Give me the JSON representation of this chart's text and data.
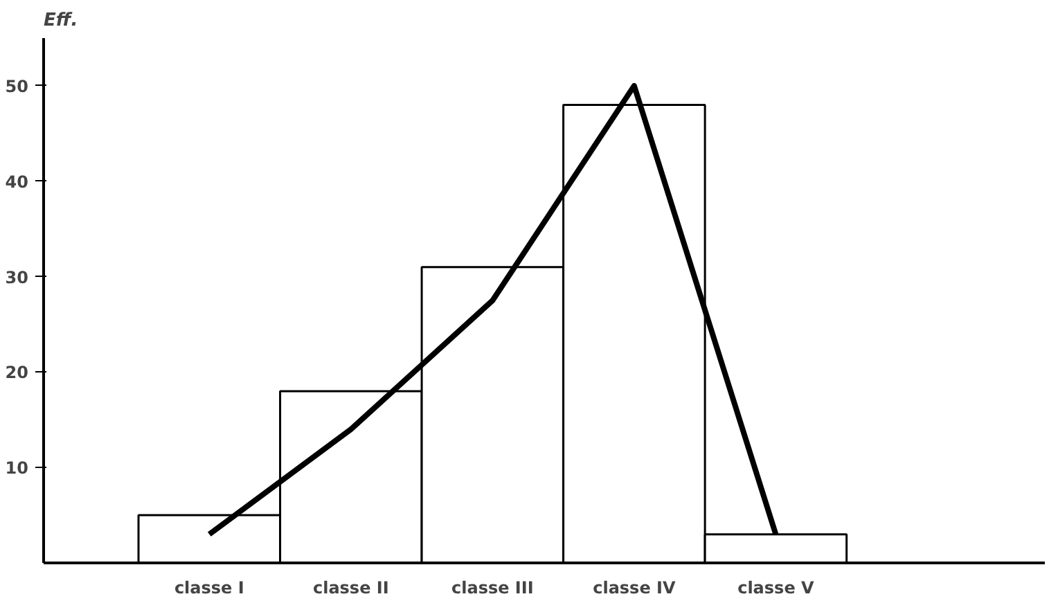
{
  "chart_data": {
    "type": "bar",
    "ylabel": "Eff.",
    "categories": [
      "classe I",
      "classe II",
      "classe III",
      "classe IV",
      "classe V"
    ],
    "values": [
      5,
      18,
      31,
      48,
      3
    ],
    "color": "#ffffff",
    "ylim": [
      0,
      55
    ],
    "yticks": [
      10,
      20,
      30,
      40,
      50
    ],
    "grid": false,
    "series": [
      {
        "type": "line",
        "color": "#000000",
        "values": [
          3,
          14,
          27.5,
          50,
          3
        ]
      }
    ]
  }
}
